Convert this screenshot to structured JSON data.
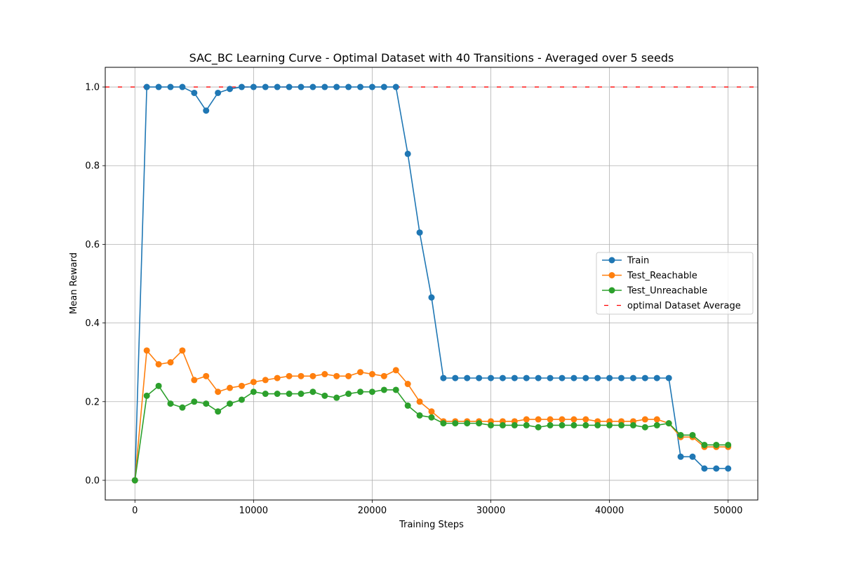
{
  "chart_data": {
    "type": "line",
    "title": "SAC_BC Learning Curve - Optimal Dataset with 40 Transitions - Averaged over 5 seeds",
    "xlabel": "Training Steps",
    "ylabel": "Mean Reward",
    "xlim": [
      -2500,
      52500
    ],
    "ylim": [
      -0.05,
      1.05
    ],
    "xticks": [
      0,
      10000,
      20000,
      30000,
      40000,
      50000
    ],
    "yticks": [
      0.0,
      0.2,
      0.4,
      0.6,
      0.8,
      1.0
    ],
    "xtick_labels": [
      "0",
      "10000",
      "20000",
      "30000",
      "40000",
      "50000"
    ],
    "ytick_labels": [
      "0.0",
      "0.2",
      "0.4",
      "0.6",
      "0.8",
      "1.0"
    ],
    "grid": true,
    "legend_position": "center-right",
    "x": [
      0,
      1000,
      2000,
      3000,
      4000,
      5000,
      6000,
      7000,
      8000,
      9000,
      10000,
      11000,
      12000,
      13000,
      14000,
      15000,
      16000,
      17000,
      18000,
      19000,
      20000,
      21000,
      22000,
      23000,
      24000,
      25000,
      26000,
      27000,
      28000,
      29000,
      30000,
      31000,
      32000,
      33000,
      34000,
      35000,
      36000,
      37000,
      38000,
      39000,
      40000,
      41000,
      42000,
      43000,
      44000,
      45000,
      46000,
      47000,
      48000,
      49000,
      50000
    ],
    "series": [
      {
        "name": "Train",
        "color": "#1f77b4",
        "values": [
          0.0,
          1.0,
          1.0,
          1.0,
          1.0,
          0.985,
          0.94,
          0.985,
          0.995,
          1.0,
          1.0,
          1.0,
          1.0,
          1.0,
          1.0,
          1.0,
          1.0,
          1.0,
          1.0,
          1.0,
          1.0,
          1.0,
          1.0,
          0.83,
          0.63,
          0.465,
          0.26,
          0.26,
          0.26,
          0.26,
          0.26,
          0.26,
          0.26,
          0.26,
          0.26,
          0.26,
          0.26,
          0.26,
          0.26,
          0.26,
          0.26,
          0.26,
          0.26,
          0.26,
          0.26,
          0.26,
          0.06,
          0.06,
          0.03,
          0.03,
          0.03
        ]
      },
      {
        "name": "Test_Reachable",
        "color": "#ff7f0e",
        "values": [
          0.0,
          0.33,
          0.295,
          0.3,
          0.33,
          0.255,
          0.265,
          0.225,
          0.235,
          0.24,
          0.25,
          0.255,
          0.26,
          0.265,
          0.265,
          0.265,
          0.27,
          0.265,
          0.265,
          0.275,
          0.27,
          0.265,
          0.28,
          0.245,
          0.2,
          0.175,
          0.15,
          0.15,
          0.15,
          0.15,
          0.15,
          0.15,
          0.15,
          0.155,
          0.155,
          0.155,
          0.155,
          0.155,
          0.155,
          0.15,
          0.15,
          0.15,
          0.15,
          0.155,
          0.155,
          0.145,
          0.11,
          0.11,
          0.085,
          0.085,
          0.085
        ]
      },
      {
        "name": "Test_Unreachable",
        "color": "#2ca02c",
        "values": [
          0.0,
          0.215,
          0.24,
          0.195,
          0.185,
          0.2,
          0.195,
          0.175,
          0.195,
          0.205,
          0.225,
          0.22,
          0.22,
          0.22,
          0.22,
          0.225,
          0.215,
          0.21,
          0.22,
          0.225,
          0.225,
          0.23,
          0.23,
          0.19,
          0.165,
          0.16,
          0.145,
          0.145,
          0.145,
          0.145,
          0.14,
          0.14,
          0.14,
          0.14,
          0.135,
          0.14,
          0.14,
          0.14,
          0.14,
          0.14,
          0.14,
          0.14,
          0.14,
          0.135,
          0.14,
          0.145,
          0.115,
          0.115,
          0.09,
          0.09,
          0.09
        ]
      }
    ],
    "reference_line": {
      "name": "optimal Dataset Average",
      "y": 1.0,
      "color": "#ff0000",
      "style": "dashed"
    }
  }
}
